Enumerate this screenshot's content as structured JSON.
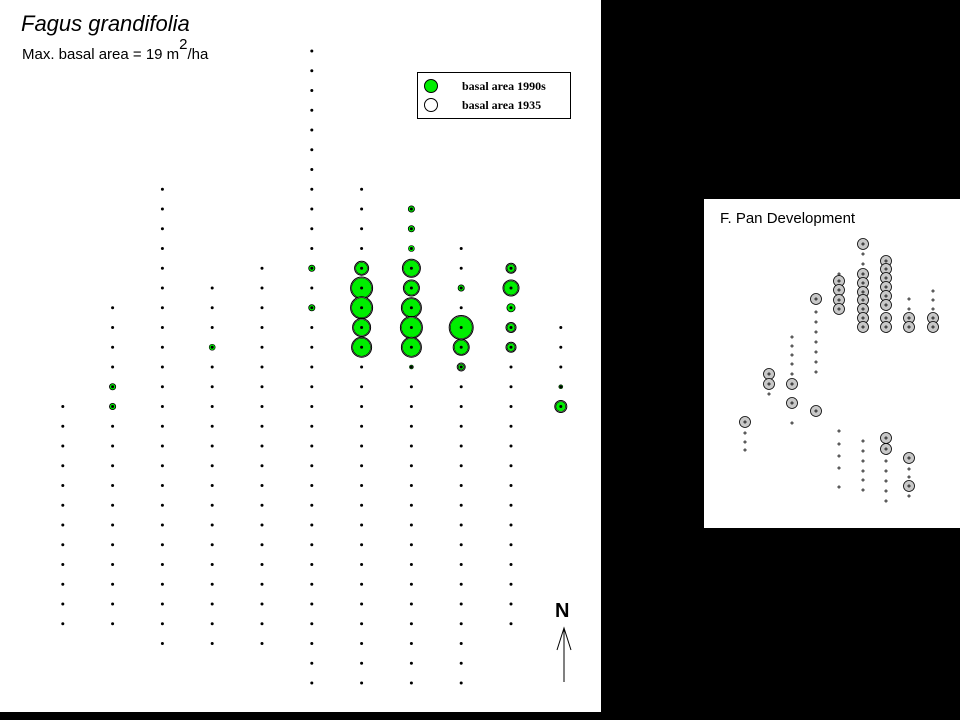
{
  "main_map": {
    "species_title": "Fagus grandifolia",
    "max_basal_prefix": "Max. basal area = 19 m",
    "max_basal_sup": "2",
    "max_basal_suffix": "/ha",
    "legend": {
      "items": [
        {
          "label": "basal area 1990s",
          "fill": "#00ee00"
        },
        {
          "label": "basal area 1935",
          "fill": "#ffffff"
        }
      ]
    },
    "north_label": "N",
    "colors": {
      "background_panel": "#ffffff",
      "basal_1990s": "#00ee00",
      "basal_1935": "#ffffff",
      "plot_center": "#000000"
    },
    "plots": [
      {
        "col": 6,
        "row": 0,
        "r90": 0,
        "r35": 0
      },
      {
        "col": 6,
        "row": 1,
        "r90": 0,
        "r35": 0
      },
      {
        "col": 6,
        "row": 2,
        "r90": 0,
        "r35": 0
      },
      {
        "col": 6,
        "row": 3,
        "r90": 0,
        "r35": 0
      },
      {
        "col": 6,
        "row": 4,
        "r90": 0,
        "r35": 0
      },
      {
        "col": 6,
        "row": 5,
        "r90": 0,
        "r35": 0
      },
      {
        "col": 6,
        "row": 6,
        "r90": 0,
        "r35": 0
      },
      {
        "col": 6,
        "row": 7,
        "r90": 0,
        "r35": 0
      },
      {
        "col": 6,
        "row": 8,
        "r90": 0,
        "r35": 0
      },
      {
        "col": 6,
        "row": 9,
        "r90": 0,
        "r35": 0
      },
      {
        "col": 6,
        "row": 10,
        "r90": 0,
        "r35": 0
      },
      {
        "col": 6,
        "row": 11,
        "r90": 3,
        "r35": 3
      },
      {
        "col": 6,
        "row": 12,
        "r90": 0,
        "r35": 0
      },
      {
        "col": 6,
        "row": 13,
        "r90": 3,
        "r35": 3
      },
      {
        "col": 7,
        "row": 6,
        "r90": 0,
        "r35": 0
      },
      {
        "col": 7,
        "row": 7,
        "r90": 0,
        "r35": 0
      },
      {
        "col": 7,
        "row": 8,
        "r90": 0,
        "r35": 0
      },
      {
        "col": 7,
        "row": 9,
        "r90": 0,
        "r35": 0
      },
      {
        "col": 7,
        "row": 10,
        "r90": 0,
        "r35": 0
      },
      {
        "col": 7,
        "row": 11,
        "r90": 6,
        "r35": 7
      },
      {
        "col": 7,
        "row": 12,
        "r90": 10,
        "r35": 11
      },
      {
        "col": 7,
        "row": 13,
        "r90": 10,
        "r35": 11
      },
      {
        "col": 7,
        "row": 14,
        "r90": 8,
        "r35": 9
      },
      {
        "col": 7,
        "row": 15,
        "r90": 9,
        "r35": 10
      },
      {
        "col": 8,
        "row": 8,
        "r90": 3,
        "r35": 3
      },
      {
        "col": 8,
        "row": 9,
        "r90": 3,
        "r35": 3
      },
      {
        "col": 8,
        "row": 10,
        "r90": 3,
        "r35": 0
      },
      {
        "col": 8,
        "row": 11,
        "r90": 8,
        "r35": 9
      },
      {
        "col": 8,
        "row": 12,
        "r90": 7,
        "r35": 8
      },
      {
        "col": 8,
        "row": 13,
        "r90": 9,
        "r35": 10
      },
      {
        "col": 8,
        "row": 14,
        "r90": 10,
        "r35": 11
      },
      {
        "col": 8,
        "row": 15,
        "r90": 9,
        "r35": 10
      },
      {
        "col": 8,
        "row": 16,
        "r90": 2,
        "r35": 0
      },
      {
        "col": 9,
        "row": 10,
        "r90": 0,
        "r35": 0
      },
      {
        "col": 9,
        "row": 11,
        "r90": 0,
        "r35": 0
      },
      {
        "col": 9,
        "row": 12,
        "r90": 3,
        "r35": 3
      },
      {
        "col": 9,
        "row": 14,
        "r90": 11,
        "r35": 12
      },
      {
        "col": 9,
        "row": 15,
        "r90": 7,
        "r35": 8
      },
      {
        "col": 9,
        "row": 16,
        "r90": 3,
        "r35": 4
      },
      {
        "col": 10,
        "row": 11,
        "r90": 4,
        "r35": 5
      },
      {
        "col": 10,
        "row": 12,
        "r90": 7,
        "r35": 8
      },
      {
        "col": 10,
        "row": 13,
        "r90": 4,
        "r35": 4
      },
      {
        "col": 10,
        "row": 14,
        "r90": 4,
        "r35": 5
      },
      {
        "col": 10,
        "row": 15,
        "r90": 4,
        "r35": 5
      },
      {
        "col": 11,
        "row": 14,
        "r90": 0,
        "r35": 0
      },
      {
        "col": 11,
        "row": 15,
        "r90": 0,
        "r35": 0
      },
      {
        "col": 11,
        "row": 16,
        "r90": 0,
        "r35": 0
      },
      {
        "col": 11,
        "row": 17,
        "r90": 2,
        "r35": 0
      },
      {
        "col": 11,
        "row": 18,
        "r90": 5,
        "r35": 6
      },
      {
        "col": 3,
        "row": 7,
        "r90": 0,
        "r35": 0
      },
      {
        "col": 3,
        "row": 8,
        "r90": 0,
        "r35": 0
      },
      {
        "col": 4,
        "row": 10,
        "r90": 0,
        "r35": 0
      },
      {
        "col": 4,
        "row": 11,
        "r90": 0,
        "r35": 0
      },
      {
        "col": 4,
        "row": 12,
        "r90": 0,
        "r35": 0
      },
      {
        "col": 4,
        "row": 13,
        "r90": 0,
        "r35": 0
      },
      {
        "col": 4,
        "row": 14,
        "r90": 0,
        "r35": 0
      },
      {
        "col": 4,
        "row": 15,
        "r90": 3,
        "r35": 0
      },
      {
        "col": 5,
        "row": 11,
        "r90": 0,
        "r35": 0
      },
      {
        "col": 5,
        "row": 12,
        "r90": 0,
        "r35": 0
      },
      {
        "col": 5,
        "row": 13,
        "r90": 0,
        "r35": 0
      },
      {
        "col": 5,
        "row": 14,
        "r90": 0,
        "r35": 0
      },
      {
        "col": 5,
        "row": 15,
        "r90": 0,
        "r35": 0
      },
      {
        "col": 2,
        "row": 13,
        "r90": 0,
        "r35": 0
      },
      {
        "col": 2,
        "row": 14,
        "r90": 0,
        "r35": 0
      },
      {
        "col": 2,
        "row": 15,
        "r90": 0,
        "r35": 0
      },
      {
        "col": 2,
        "row": 16,
        "r90": 0,
        "r35": 0
      },
      {
        "col": 2,
        "row": 17,
        "r90": 3,
        "r35": 3
      },
      {
        "col": 2,
        "row": 18,
        "r90": 3,
        "r35": 3
      }
    ]
  },
  "inset": {
    "title": "F. Pan Development",
    "colors": {
      "circle_fill": "#c8c8c8"
    }
  }
}
